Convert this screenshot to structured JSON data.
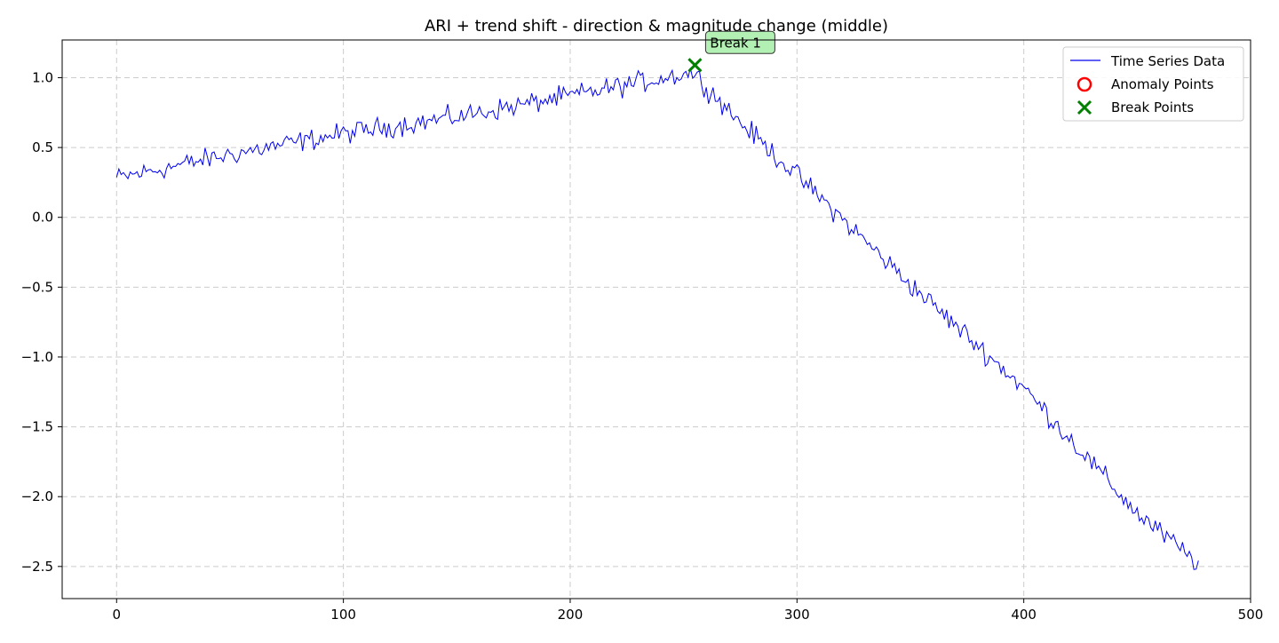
{
  "chart_data": {
    "type": "line",
    "title": "ARI + trend shift - direction & magnitude change (middle)",
    "xlabel": "",
    "ylabel": "",
    "xlim": [
      -24,
      500
    ],
    "ylim": [
      -2.73,
      1.27
    ],
    "xticks": [
      0,
      100,
      200,
      300,
      400,
      500
    ],
    "yticks": [
      1.0,
      0.5,
      0.0,
      -0.5,
      -1.0,
      -1.5,
      -2.0,
      -2.5
    ],
    "xtick_labels": [
      "0",
      "100",
      "200",
      "300",
      "400",
      "500"
    ],
    "ytick_labels": [
      "1.0",
      "0.5",
      "0.0",
      "−0.5",
      "−1.0",
      "−1.5",
      "−2.0",
      "−2.5"
    ],
    "grid": true,
    "legend_position": "top-right",
    "series": [
      {
        "name": "Time Series Data",
        "color": "#0000ee",
        "style": "line",
        "x_start": 0,
        "x_end": 477,
        "anchors": [
          {
            "x": 0,
            "y": 0.28
          },
          {
            "x": 50,
            "y": 0.45
          },
          {
            "x": 100,
            "y": 0.6
          },
          {
            "x": 150,
            "y": 0.72
          },
          {
            "x": 200,
            "y": 0.87
          },
          {
            "x": 254,
            "y": 1.04
          },
          {
            "x": 275,
            "y": 0.68
          },
          {
            "x": 300,
            "y": 0.3
          },
          {
            "x": 350,
            "y": -0.48
          },
          {
            "x": 400,
            "y": -1.22
          },
          {
            "x": 450,
            "y": -2.12
          },
          {
            "x": 477,
            "y": -2.48
          }
        ]
      },
      {
        "name": "Anomaly Points",
        "color": "#ff0000",
        "style": "scatter-ring",
        "points": []
      },
      {
        "name": "Break Points",
        "color": "#008000",
        "style": "scatter-x",
        "points": [
          {
            "x": 255,
            "y": 1.09
          }
        ]
      }
    ],
    "annotations": [
      {
        "text": "Break 1",
        "x": 255,
        "y": 1.09,
        "box_color": "#b3f0b3"
      }
    ]
  }
}
